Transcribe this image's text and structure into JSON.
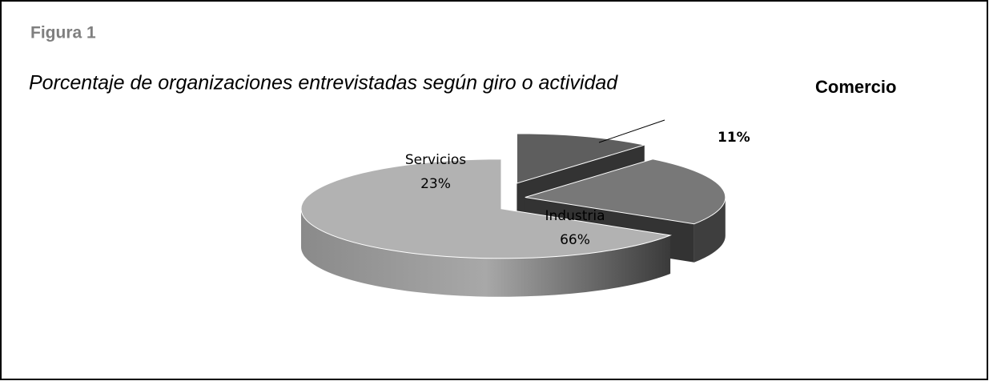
{
  "chart_data": {
    "type": "pie",
    "figure_label": "Figura 1",
    "title": "Porcentaje de organizaciones entrevistadas según giro o actividad",
    "categories": [
      "Comercio",
      "Servicios",
      "Industria"
    ],
    "values": [
      11,
      23,
      66
    ],
    "value_labels": [
      "11%",
      "23%",
      "66%"
    ],
    "colors": [
      "#5e5e5e",
      "#787878",
      "#b2b2b2"
    ],
    "start": "top",
    "direction": "clockwise",
    "exploded": true
  }
}
